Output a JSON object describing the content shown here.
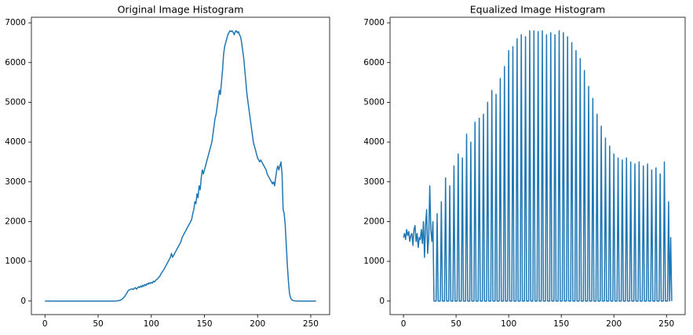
{
  "chart_data": [
    {
      "type": "line",
      "title": "Original Image Histogram",
      "color": "#1f77b4",
      "x": [
        0,
        1,
        2,
        3,
        4,
        5,
        6,
        7,
        8,
        9,
        10,
        11,
        12,
        13,
        14,
        15,
        16,
        17,
        18,
        19,
        20,
        21,
        22,
        23,
        24,
        25,
        26,
        27,
        28,
        29,
        30,
        31,
        32,
        33,
        34,
        35,
        36,
        37,
        38,
        39,
        40,
        41,
        42,
        43,
        44,
        45,
        46,
        47,
        48,
        49,
        50,
        51,
        52,
        53,
        54,
        55,
        56,
        57,
        58,
        59,
        60,
        61,
        62,
        63,
        64,
        65,
        66,
        67,
        68,
        69,
        70,
        71,
        72,
        73,
        74,
        75,
        76,
        77,
        78,
        79,
        80,
        81,
        82,
        83,
        84,
        85,
        86,
        87,
        88,
        89,
        90,
        91,
        92,
        93,
        94,
        95,
        96,
        97,
        98,
        99,
        100,
        101,
        102,
        103,
        104,
        105,
        106,
        107,
        108,
        109,
        110,
        111,
        112,
        113,
        114,
        115,
        116,
        117,
        118,
        119,
        120,
        121,
        122,
        123,
        124,
        125,
        126,
        127,
        128,
        129,
        130,
        131,
        132,
        133,
        134,
        135,
        136,
        137,
        138,
        139,
        140,
        141,
        142,
        143,
        144,
        145,
        146,
        147,
        148,
        149,
        150,
        151,
        152,
        153,
        154,
        155,
        156,
        157,
        158,
        159,
        160,
        161,
        162,
        163,
        164,
        165,
        166,
        167,
        168,
        169,
        170,
        171,
        172,
        173,
        174,
        175,
        176,
        177,
        178,
        179,
        180,
        181,
        182,
        183,
        184,
        185,
        186,
        187,
        188,
        189,
        190,
        191,
        192,
        193,
        194,
        195,
        196,
        197,
        198,
        199,
        200,
        201,
        202,
        203,
        204,
        205,
        206,
        207,
        208,
        209,
        210,
        211,
        212,
        213,
        214,
        215,
        216,
        217,
        218,
        219,
        220,
        221,
        222,
        223,
        224,
        225,
        226,
        227,
        228,
        229,
        230,
        231,
        232,
        233,
        234,
        235,
        236,
        237,
        238,
        239,
        240,
        241,
        242,
        243,
        244,
        245,
        246,
        247,
        248,
        249,
        250,
        251,
        252,
        253,
        254,
        255
      ],
      "values": [
        0,
        0,
        0,
        0,
        0,
        0,
        0,
        0,
        0,
        0,
        0,
        0,
        0,
        0,
        0,
        0,
        0,
        0,
        0,
        0,
        0,
        0,
        0,
        0,
        0,
        0,
        0,
        0,
        0,
        0,
        0,
        0,
        0,
        0,
        0,
        0,
        0,
        0,
        0,
        0,
        0,
        0,
        0,
        0,
        0,
        0,
        0,
        0,
        0,
        0,
        0,
        0,
        0,
        0,
        0,
        0,
        0,
        0,
        0,
        0,
        0,
        0,
        0,
        0,
        0,
        1,
        2,
        4,
        6,
        10,
        15,
        25,
        40,
        60,
        90,
        120,
        160,
        200,
        250,
        280,
        290,
        300,
        310,
        290,
        320,
        340,
        300,
        330,
        360,
        340,
        380,
        350,
        400,
        370,
        420,
        390,
        440,
        420,
        460,
        440,
        470,
        450,
        500,
        480,
        520,
        540,
        560,
        600,
        620,
        680,
        720,
        760,
        800,
        850,
        900,
        950,
        1000,
        1050,
        1100,
        1200,
        1100,
        1150,
        1200,
        1250,
        1300,
        1350,
        1400,
        1450,
        1500,
        1600,
        1650,
        1700,
        1750,
        1800,
        1850,
        1900,
        1950,
        2000,
        2050,
        2200,
        2300,
        2500,
        2450,
        2700,
        2600,
        2900,
        2800,
        3100,
        3300,
        3200,
        3300,
        3400,
        3500,
        3600,
        3700,
        3800,
        3900,
        4000,
        4200,
        4400,
        4600,
        4700,
        4900,
        5100,
        5300,
        5200,
        5500,
        5800,
        6200,
        6400,
        6500,
        6600,
        6700,
        6750,
        6800,
        6780,
        6800,
        6760,
        6700,
        6780,
        6800,
        6750,
        6780,
        6700,
        6650,
        6500,
        6300,
        6100,
        5800,
        5500,
        5200,
        5000,
        4800,
        4600,
        4400,
        4200,
        4000,
        3900,
        3800,
        3700,
        3600,
        3550,
        3500,
        3550,
        3500,
        3450,
        3400,
        3350,
        3300,
        3200,
        3150,
        3100,
        3050,
        3000,
        2950,
        3000,
        2900,
        3100,
        3300,
        3400,
        3300,
        3400,
        3500,
        3200,
        2300,
        2200,
        1900,
        1400,
        900,
        500,
        200,
        80,
        40,
        20,
        10,
        5,
        3,
        2,
        1,
        1,
        0,
        0,
        0,
        0,
        0,
        0,
        0,
        0,
        0,
        0,
        0,
        0,
        0,
        0,
        0,
        0
      ],
      "xlim": [
        -12.75,
        267.75
      ],
      "xticks": [
        0,
        50,
        100,
        150,
        200,
        250
      ],
      "ylim": [
        -340,
        7140
      ],
      "yticks": [
        0,
        1000,
        2000,
        3000,
        4000,
        5000,
        6000,
        7000
      ]
    },
    {
      "type": "line",
      "title": "Equalized Image Histogram",
      "color": "#1f77b4",
      "x": [
        0,
        1,
        2,
        3,
        4,
        5,
        6,
        7,
        8,
        9,
        10,
        11,
        12,
        13,
        14,
        15,
        16,
        17,
        18,
        19,
        20,
        21,
        22,
        23,
        24,
        25,
        26,
        27,
        28,
        29,
        30,
        31,
        32,
        33,
        34,
        35,
        36,
        37,
        38,
        39,
        40,
        41,
        42,
        43,
        44,
        45,
        46,
        47,
        48,
        49,
        50,
        51,
        52,
        53,
        54,
        55,
        56,
        57,
        58,
        59,
        60,
        61,
        62,
        63,
        64,
        65,
        66,
        67,
        68,
        69,
        70,
        71,
        72,
        73,
        74,
        75,
        76,
        77,
        78,
        79,
        80,
        81,
        82,
        83,
        84,
        85,
        86,
        87,
        88,
        89,
        90,
        91,
        92,
        93,
        94,
        95,
        96,
        97,
        98,
        99,
        100,
        101,
        102,
        103,
        104,
        105,
        106,
        107,
        108,
        109,
        110,
        111,
        112,
        113,
        114,
        115,
        116,
        117,
        118,
        119,
        120,
        121,
        122,
        123,
        124,
        125,
        126,
        127,
        128,
        129,
        130,
        131,
        132,
        133,
        134,
        135,
        136,
        137,
        138,
        139,
        140,
        141,
        142,
        143,
        144,
        145,
        146,
        147,
        148,
        149,
        150,
        151,
        152,
        153,
        154,
        155,
        156,
        157,
        158,
        159,
        160,
        161,
        162,
        163,
        164,
        165,
        166,
        167,
        168,
        169,
        170,
        171,
        172,
        173,
        174,
        175,
        176,
        177,
        178,
        179,
        180,
        181,
        182,
        183,
        184,
        185,
        186,
        187,
        188,
        189,
        190,
        191,
        192,
        193,
        194,
        195,
        196,
        197,
        198,
        199,
        200,
        201,
        202,
        203,
        204,
        205,
        206,
        207,
        208,
        209,
        210,
        211,
        212,
        213,
        214,
        215,
        216,
        217,
        218,
        219,
        220,
        221,
        222,
        223,
        224,
        225,
        226,
        227,
        228,
        229,
        230,
        231,
        232,
        233,
        234,
        235,
        236,
        237,
        238,
        239,
        240,
        241,
        242,
        243,
        244,
        245,
        246,
        247,
        248,
        249,
        250,
        251,
        252,
        253,
        254,
        255
      ],
      "values": [
        1600,
        1700,
        1550,
        1800,
        1650,
        1750,
        1500,
        1650,
        1700,
        1400,
        1800,
        1900,
        1500,
        1700,
        1350,
        1600,
        1550,
        1800,
        1450,
        2000,
        1100,
        1900,
        2300,
        1200,
        1600,
        2900,
        1800,
        1500,
        2000,
        0,
        0,
        0,
        2200,
        0,
        0,
        0,
        2500,
        0,
        0,
        0,
        3100,
        0,
        0,
        0,
        2900,
        0,
        0,
        0,
        3400,
        0,
        0,
        0,
        3700,
        0,
        0,
        0,
        3600,
        0,
        0,
        0,
        4200,
        0,
        0,
        0,
        4000,
        0,
        0,
        0,
        4500,
        0,
        0,
        0,
        4600,
        0,
        0,
        0,
        4700,
        0,
        0,
        0,
        5000,
        0,
        0,
        0,
        5300,
        0,
        0,
        0,
        5200,
        0,
        0,
        0,
        5600,
        0,
        0,
        0,
        5900,
        0,
        0,
        0,
        6300,
        0,
        0,
        0,
        6400,
        0,
        0,
        0,
        6600,
        0,
        0,
        0,
        6700,
        0,
        0,
        0,
        6650,
        0,
        0,
        0,
        6800,
        0,
        0,
        0,
        6800,
        0,
        0,
        0,
        6780,
        0,
        0,
        0,
        6800,
        0,
        0,
        0,
        6700,
        0,
        0,
        0,
        6750,
        0,
        0,
        0,
        6700,
        0,
        0,
        0,
        6800,
        0,
        0,
        0,
        6750,
        0,
        0,
        0,
        6650,
        0,
        0,
        0,
        6500,
        0,
        0,
        0,
        6300,
        0,
        0,
        0,
        6100,
        0,
        0,
        0,
        5800,
        0,
        0,
        0,
        5400,
        0,
        0,
        0,
        5100,
        0,
        0,
        0,
        4700,
        0,
        0,
        0,
        4400,
        0,
        0,
        0,
        4100,
        0,
        0,
        0,
        3900,
        0,
        0,
        0,
        3700,
        0,
        0,
        0,
        3600,
        0,
        0,
        0,
        3550,
        0,
        0,
        0,
        3600,
        0,
        0,
        0,
        3500,
        0,
        0,
        0,
        3450,
        0,
        0,
        0,
        3500,
        0,
        0,
        0,
        3400,
        0,
        0,
        0,
        3450,
        0,
        0,
        0,
        3300,
        0,
        0,
        0,
        3350,
        0,
        0,
        0,
        3200,
        0,
        0,
        0,
        3500,
        0,
        0,
        0,
        2500,
        0,
        1600,
        0
      ],
      "xlim": [
        -12.75,
        267.75
      ],
      "xticks": [
        0,
        50,
        100,
        150,
        200,
        250
      ],
      "ylim": [
        -340,
        7140
      ],
      "yticks": [
        0,
        1000,
        2000,
        3000,
        4000,
        5000,
        6000,
        7000
      ]
    }
  ]
}
